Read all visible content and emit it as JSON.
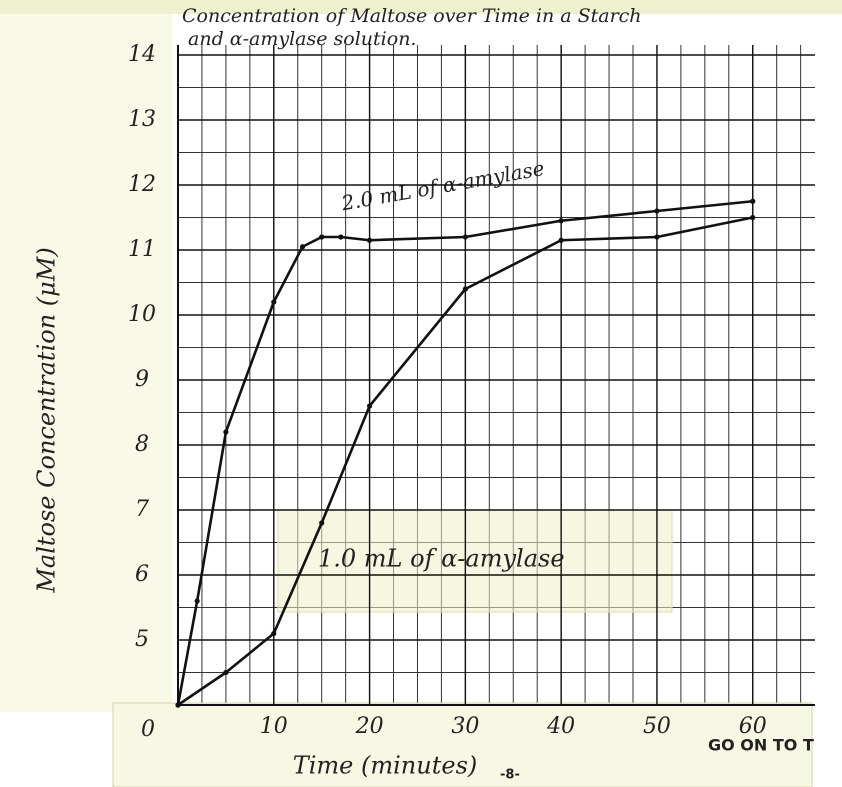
{
  "chart_data": {
    "type": "line",
    "title_lines": [
      "Concentration of Maltose over Time in a Starch",
      "and α-amylase solution."
    ],
    "x_label": "Time (minutes)",
    "y_label": "Maltose Concentration (μM)",
    "origin_label": "0",
    "series": [
      {
        "name": "2.0 mL of α-amylase",
        "color": "#111111",
        "x": [
          0,
          2,
          5,
          10,
          13,
          15,
          17,
          20,
          30,
          40,
          50,
          60
        ],
        "values": [
          4,
          5.6,
          8.2,
          10.2,
          11.05,
          11.2,
          11.2,
          11.15,
          11.2,
          11.45,
          11.6,
          11.75
        ]
      },
      {
        "name": "1.0 mL of α-amylase",
        "color": "#111111",
        "x": [
          0,
          5,
          10,
          15,
          20,
          30,
          40,
          50,
          60
        ],
        "values": [
          4,
          4.5,
          5.1,
          6.8,
          8.6,
          10.4,
          11.15,
          11.2,
          11.5
        ]
      }
    ],
    "xlim": [
      0,
      66.5
    ],
    "xticks": [
      10,
      20,
      30,
      40,
      50,
      60
    ],
    "ylim": [
      4,
      14
    ],
    "yticks": [
      5,
      6,
      7,
      8,
      9,
      10,
      11,
      12,
      13,
      14
    ],
    "grid": true
  },
  "footer": {
    "page_number": "-8-",
    "next": "GO ON TO T"
  }
}
